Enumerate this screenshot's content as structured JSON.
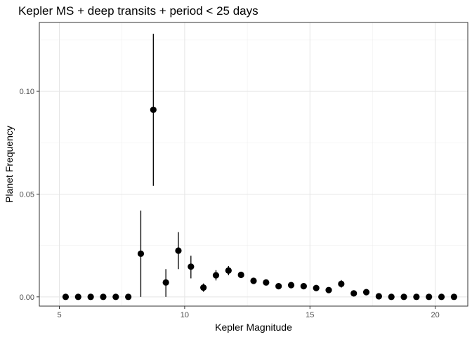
{
  "chart_data": {
    "type": "scatter",
    "title": "Kepler MS + deep transits + period < 25 days",
    "xlabel": "Kepler Magnitude",
    "ylabel": "Planet Frequency",
    "xlim": [
      4.2,
      21.3
    ],
    "ylim": [
      -0.0045,
      0.1335
    ],
    "x_ticks": [
      5,
      10,
      15,
      20
    ],
    "x_tick_labels": [
      "5",
      "10",
      "15",
      "20"
    ],
    "y_ticks": [
      0.0,
      0.05,
      0.1
    ],
    "y_tick_labels": [
      "0.00",
      "0.05",
      "0.10"
    ],
    "grid": true,
    "legend": "none",
    "point_color": "#000000",
    "points": [
      {
        "x": 5.25,
        "y": 0.0
      },
      {
        "x": 5.75,
        "y": 0.0
      },
      {
        "x": 6.25,
        "y": 0.0
      },
      {
        "x": 6.75,
        "y": 0.0
      },
      {
        "x": 7.25,
        "y": 0.0
      },
      {
        "x": 7.75,
        "y": 0.0
      },
      {
        "x": 8.25,
        "y": 0.021,
        "err": [
          0.0,
          0.042
        ]
      },
      {
        "x": 8.75,
        "y": 0.091,
        "err": [
          0.054,
          0.128
        ]
      },
      {
        "x": 9.25,
        "y": 0.007,
        "err": [
          0.0,
          0.0135
        ]
      },
      {
        "x": 9.75,
        "y": 0.0225,
        "err": [
          0.0135,
          0.0315
        ]
      },
      {
        "x": 10.25,
        "y": 0.0147,
        "err": [
          0.009,
          0.02
        ]
      },
      {
        "x": 10.75,
        "y": 0.0045,
        "err": [
          0.0025,
          0.0065
        ]
      },
      {
        "x": 11.25,
        "y": 0.0105,
        "err": [
          0.008,
          0.013
        ]
      },
      {
        "x": 11.75,
        "y": 0.0128,
        "err": [
          0.0105,
          0.015
        ]
      },
      {
        "x": 12.25,
        "y": 0.0107
      },
      {
        "x": 12.75,
        "y": 0.0078
      },
      {
        "x": 13.25,
        "y": 0.007
      },
      {
        "x": 13.75,
        "y": 0.0052
      },
      {
        "x": 14.25,
        "y": 0.0057
      },
      {
        "x": 14.75,
        "y": 0.0052
      },
      {
        "x": 15.25,
        "y": 0.0043
      },
      {
        "x": 15.75,
        "y": 0.0033
      },
      {
        "x": 16.25,
        "y": 0.0063,
        "err": [
          0.0045,
          0.0082
        ]
      },
      {
        "x": 16.75,
        "y": 0.0017
      },
      {
        "x": 17.25,
        "y": 0.0023
      },
      {
        "x": 17.75,
        "y": 0.0003
      },
      {
        "x": 18.25,
        "y": 0.0
      },
      {
        "x": 18.75,
        "y": 0.0
      },
      {
        "x": 19.25,
        "y": 0.0
      },
      {
        "x": 19.75,
        "y": 0.0
      },
      {
        "x": 20.25,
        "y": 0.0
      },
      {
        "x": 20.75,
        "y": 0.0
      }
    ]
  }
}
